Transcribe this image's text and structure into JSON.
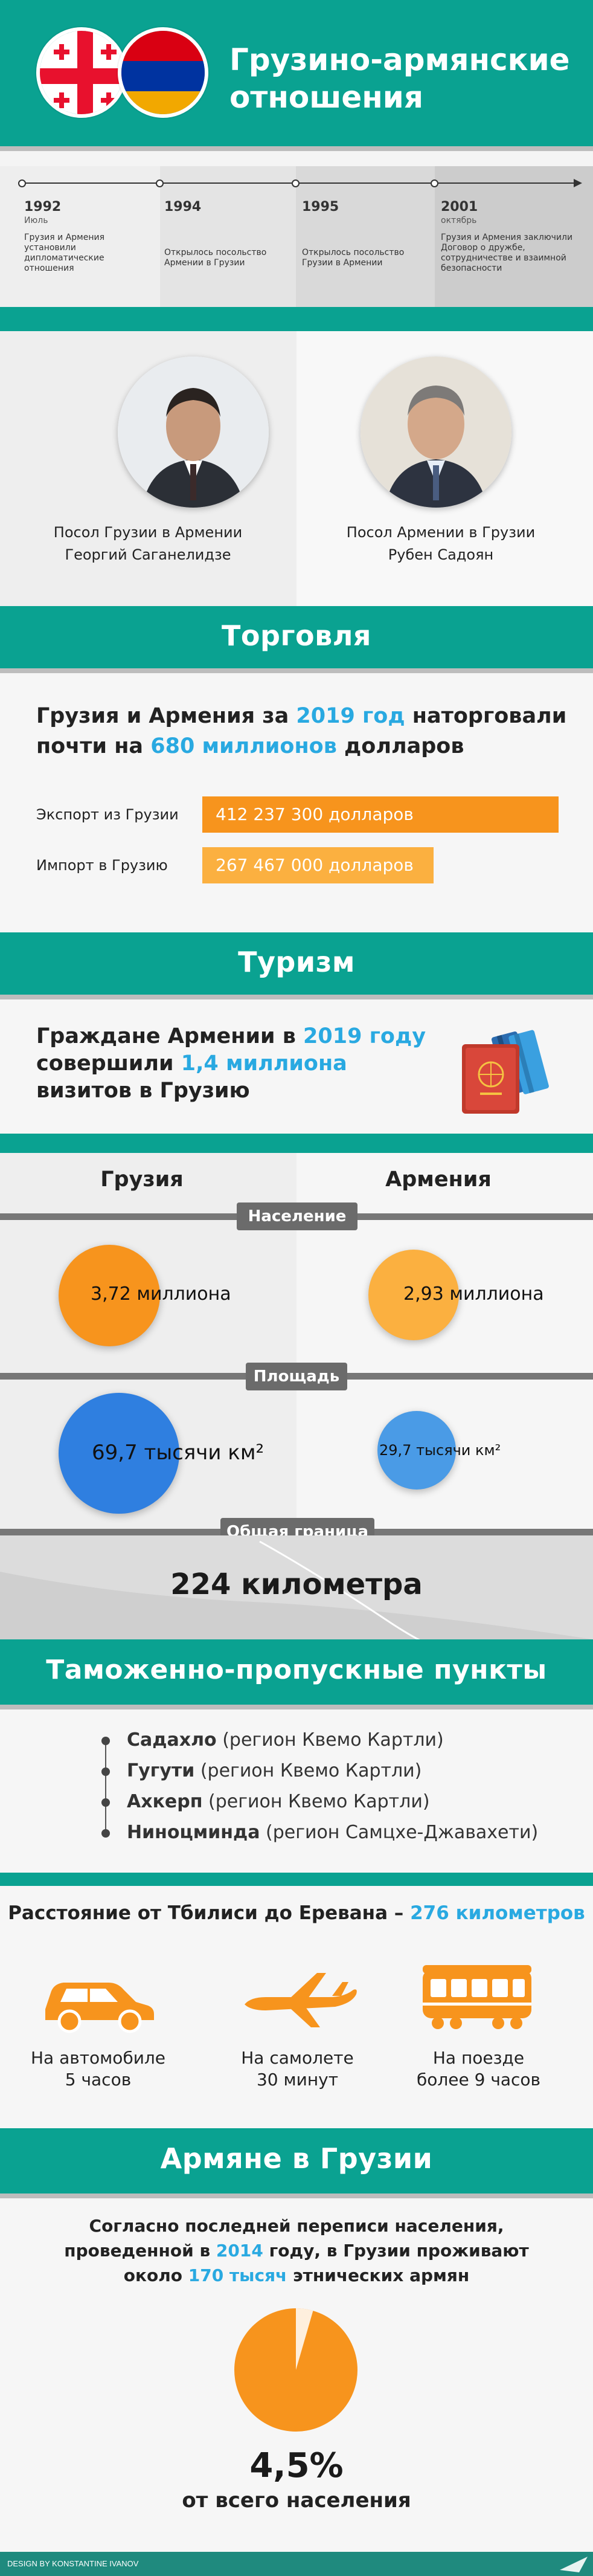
{
  "header": {
    "title_line1": "Грузино-армянские",
    "title_line2": "отношения"
  },
  "timeline": [
    {
      "year": "1992",
      "month": "Июль",
      "text": "Грузия и Армения установили дипломатические отношения"
    },
    {
      "year": "1994",
      "month": "",
      "text": "Открылось посольство Армении в Грузии"
    },
    {
      "year": "1995",
      "month": "",
      "text": "Открылось посольство Грузии в Армении"
    },
    {
      "year": "2001",
      "month": "октябрь",
      "text": "Грузия и Армения заключили Договор о дружбе, сотрудничестве и взаимной безопасности"
    }
  ],
  "ambassadors": {
    "georgia": {
      "line1": "Посол Грузии в Армении",
      "line2": "Георгий Саганелидзе"
    },
    "armenia": {
      "line1": "Посол Армении в Грузии",
      "line2": "Рубен Садоян"
    }
  },
  "trade": {
    "title": "Торговля",
    "line1_a": "Грузия и Армения за ",
    "line1_b": "2019 год",
    "line1_c": " наторговали",
    "line2_a": "почти на ",
    "line2_b": "680 миллионов",
    "line2_c": " долларов",
    "export_label": "Экспорт из Грузии",
    "export_value": "412 237 300 долларов",
    "export_amount": 412237300,
    "import_label": "Импорт в Грузию",
    "import_value": "267 467 000 долларов",
    "import_amount": 267467000,
    "export_color": "#f7941d",
    "import_color": "#fbb040"
  },
  "tourism": {
    "title": "Туризм",
    "line1_a": "Граждане Армении в ",
    "line1_b": "2019 году",
    "line2_a": "совершили ",
    "line2_b": "1,4 миллиона",
    "line3": "визитов в Грузию"
  },
  "compare": {
    "georgia_label": "Грузия",
    "armenia_label": "Армения",
    "population_label": "Население",
    "georgia_population": "3,72 миллиона",
    "armenia_population": "2,93 миллиона",
    "area_label": "Площадь",
    "georgia_area": "69,7 тысячи км²",
    "armenia_area": "29,7 тысячи км²",
    "border_label": "Общая граница",
    "border_value": "224 километра"
  },
  "customs": {
    "title": "Таможенно-пропускные пункты",
    "points": [
      {
        "name": "Садахло",
        "region": " (регион Квемо Картли)"
      },
      {
        "name": "Гугути",
        "region": " (регион Квемо Картли)"
      },
      {
        "name": "Ахкерп",
        "region": " (регион Квемо Картли)"
      },
      {
        "name": "Ниноцминда",
        "region": " (регион Самцхе-Джавахети)"
      }
    ]
  },
  "distance": {
    "text_a": "Расстояние от Тбилиси до Еревана – ",
    "text_b": "276 километров",
    "car_line1": "На автомобиле",
    "car_line2": "5 часов",
    "plane_line1": "На самолете",
    "plane_line2": "30 минут",
    "train_line1": "На поезде",
    "train_line2": "более 9 часов",
    "icon_color": "#f7941d"
  },
  "armenians": {
    "title": "Армяне в Грузии",
    "line1": "Согласно последней переписи населения,",
    "line2_a": "проведенной в ",
    "line2_b": "2014",
    "line2_c": " году, в Грузии проживают",
    "line3_a": "около ",
    "line3_b": "170 тысяч",
    "line3_c": " этнических армян",
    "percent": "4,5%",
    "percent_value": 4.5,
    "caption": "от всего населения"
  },
  "footer": {
    "credit": "DESIGN BY KONSTANTINE IVANOV",
    "logo": "SPUTNIK"
  }
}
